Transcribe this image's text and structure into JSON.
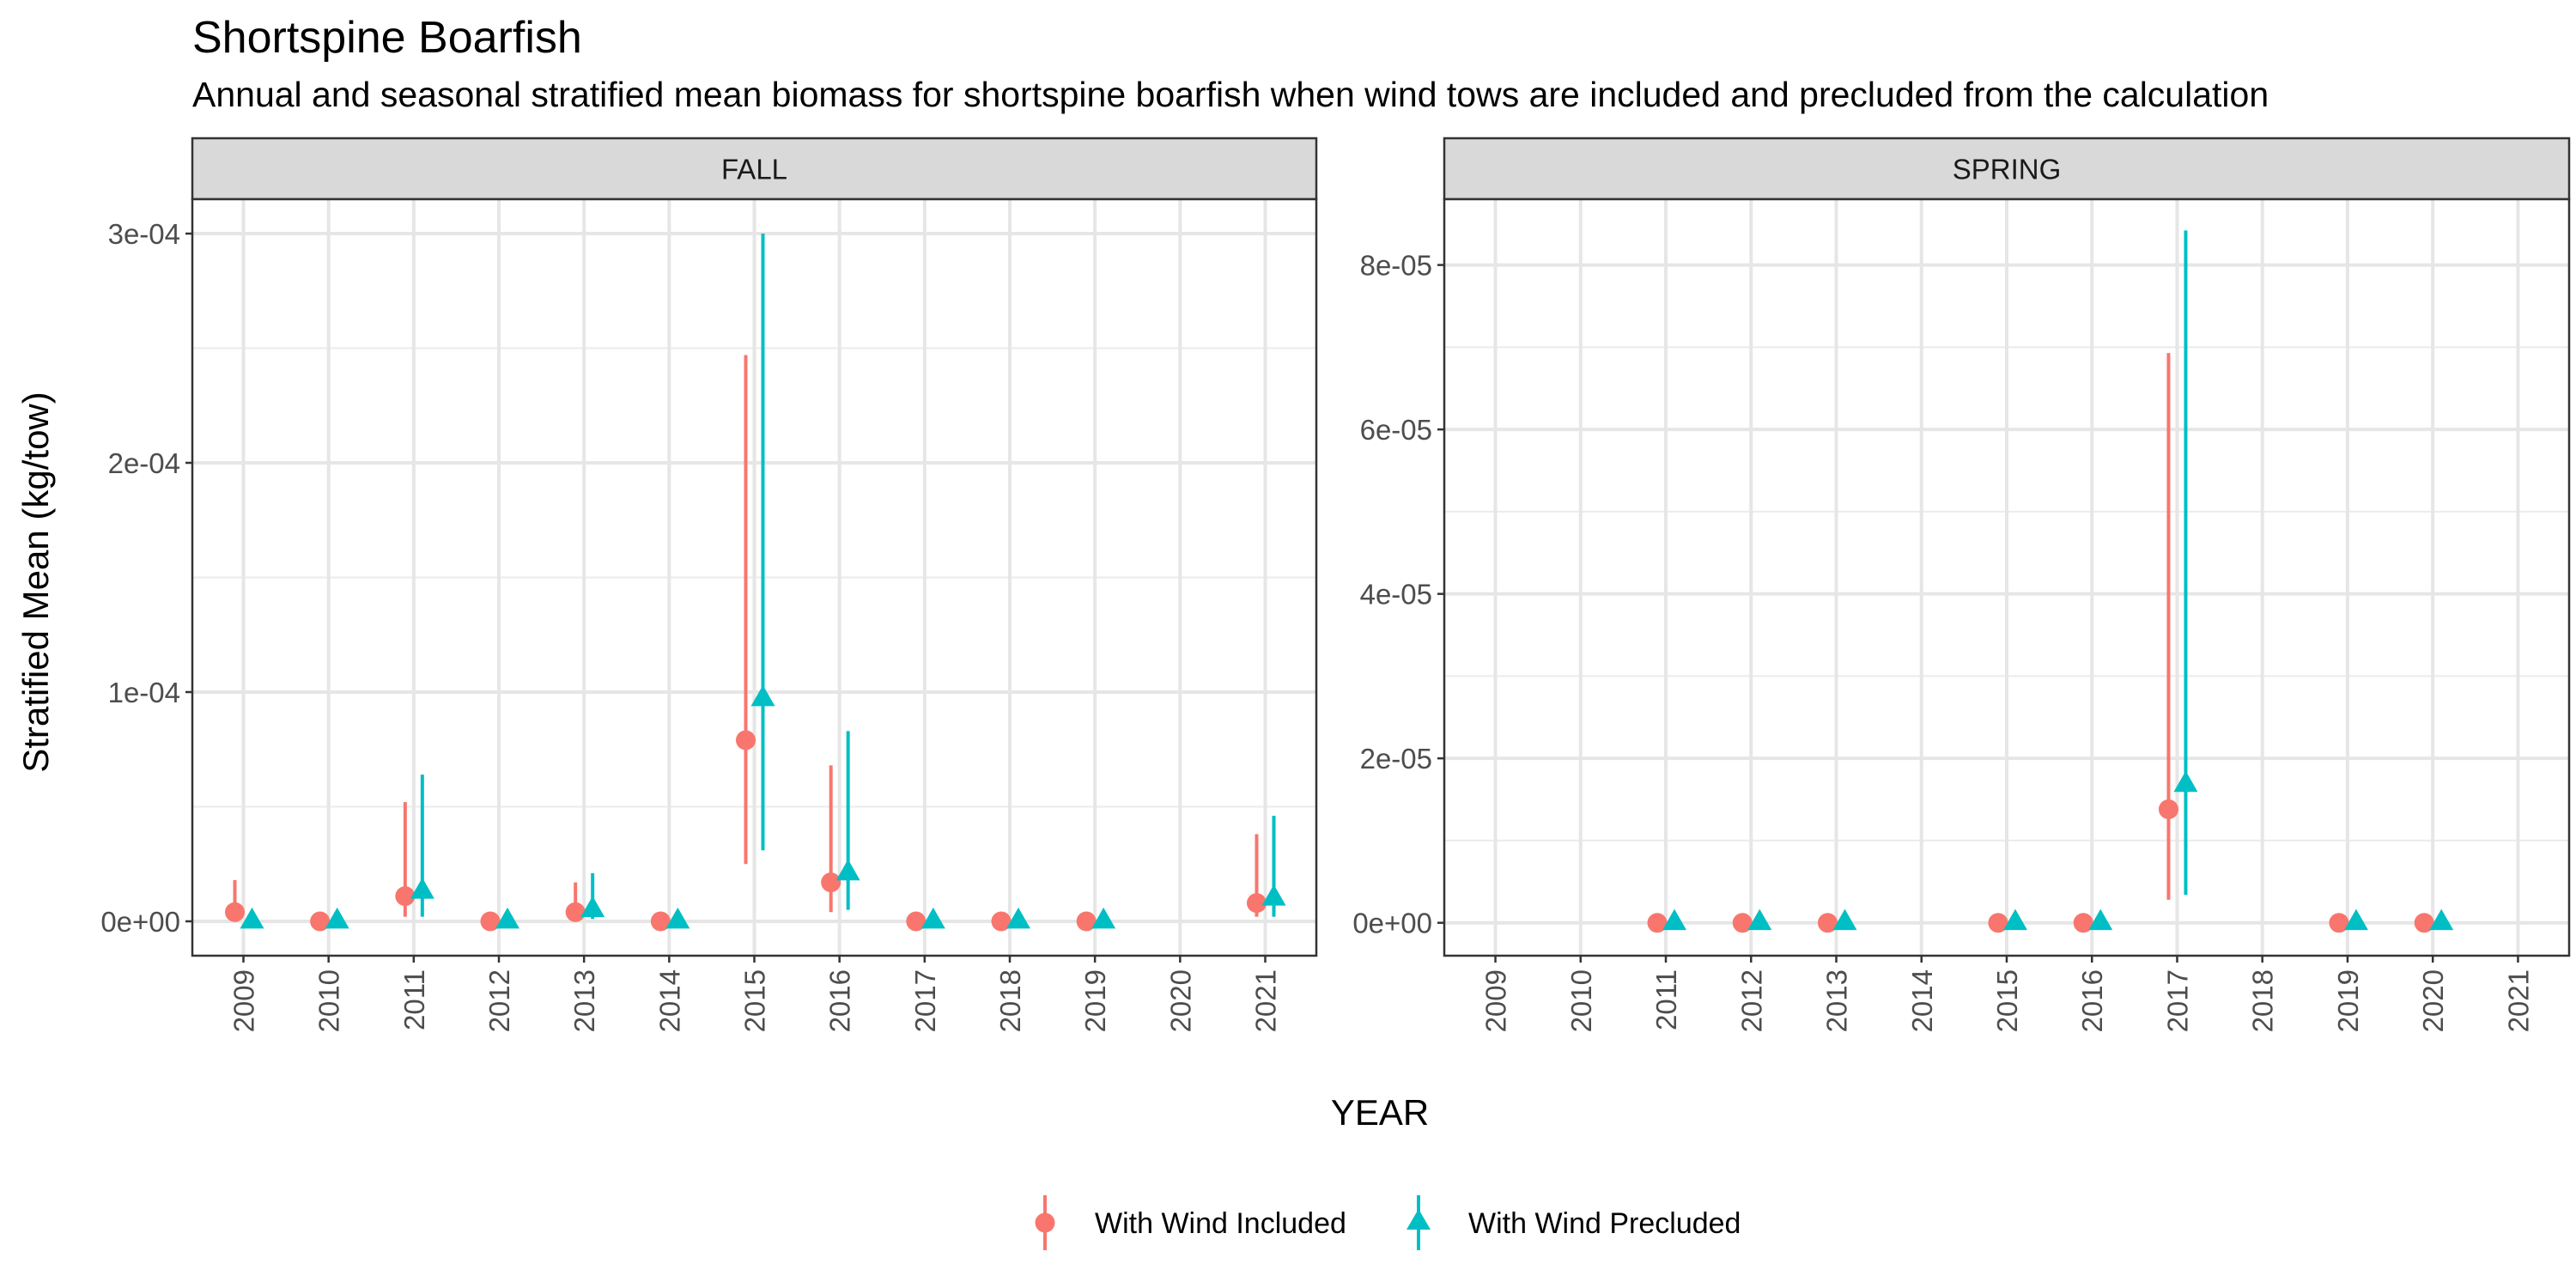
{
  "title": "Shortspine Boarfish",
  "subtitle": "Annual and seasonal stratified mean biomass for shortspine boarfish when wind tows are included and precluded from the calculation",
  "chart_data": {
    "type": "scatter",
    "xlabel": "YEAR",
    "ylabel": "Stratified Mean (kg/tow)",
    "legend_position": "bottom",
    "grid": true,
    "series_styles": [
      {
        "name": "With Wind Included",
        "color": "#F8766D",
        "shape": "circle"
      },
      {
        "name": "With Wind Precluded",
        "color": "#00BFC4",
        "shape": "triangle"
      }
    ],
    "panels": [
      {
        "strip": "FALL",
        "x_ticks": [
          "2009",
          "2010",
          "2011",
          "2012",
          "2013",
          "2014",
          "2015",
          "2016",
          "2017",
          "2018",
          "2019",
          "2020",
          "2021"
        ],
        "y_ticks": [
          0,
          0.0001,
          0.0002,
          0.0003
        ],
        "y_tick_labels": [
          "0e+00",
          "1e-04",
          "2e-04",
          "3e-04"
        ],
        "ylim": [
          -1.5e-05,
          0.000315
        ],
        "series": [
          {
            "name": "With Wind Included",
            "points": [
              {
                "x": 2009,
                "y": 4e-06,
                "lo": 5e-07,
                "hi": 1.8e-05
              },
              {
                "x": 2010,
                "y": 0.0,
                "lo": 0.0,
                "hi": 0.0
              },
              {
                "x": 2011,
                "y": 1.1e-05,
                "lo": 2e-06,
                "hi": 5.2e-05
              },
              {
                "x": 2012,
                "y": 0.0,
                "lo": 0.0,
                "hi": 0.0
              },
              {
                "x": 2013,
                "y": 4e-06,
                "lo": 5e-07,
                "hi": 1.7e-05
              },
              {
                "x": 2014,
                "y": 0.0,
                "lo": 0.0,
                "hi": 0.0
              },
              {
                "x": 2015,
                "y": 7.9e-05,
                "lo": 2.5e-05,
                "hi": 0.000247
              },
              {
                "x": 2016,
                "y": 1.7e-05,
                "lo": 4e-06,
                "hi": 6.8e-05
              },
              {
                "x": 2017,
                "y": 0.0,
                "lo": 0.0,
                "hi": 0.0
              },
              {
                "x": 2018,
                "y": 0.0,
                "lo": 0.0,
                "hi": 0.0
              },
              {
                "x": 2019,
                "y": 0.0,
                "lo": 0.0,
                "hi": 0.0
              },
              {
                "x": 2021,
                "y": 8e-06,
                "lo": 2e-06,
                "hi": 3.8e-05
              }
            ]
          },
          {
            "name": "With Wind Precluded",
            "points": [
              {
                "x": 2009,
                "y": 0.0,
                "lo": 0.0,
                "hi": 0.0
              },
              {
                "x": 2010,
                "y": 0.0,
                "lo": 0.0,
                "hi": 0.0
              },
              {
                "x": 2011,
                "y": 1.3e-05,
                "lo": 2e-06,
                "hi": 6.4e-05
              },
              {
                "x": 2012,
                "y": 0.0,
                "lo": 0.0,
                "hi": 0.0
              },
              {
                "x": 2013,
                "y": 5e-06,
                "lo": 1e-06,
                "hi": 2.1e-05
              },
              {
                "x": 2014,
                "y": 0.0,
                "lo": 0.0,
                "hi": 0.0
              },
              {
                "x": 2015,
                "y": 9.7e-05,
                "lo": 3.1e-05,
                "hi": 0.0003
              },
              {
                "x": 2016,
                "y": 2.1e-05,
                "lo": 5e-06,
                "hi": 8.3e-05
              },
              {
                "x": 2017,
                "y": 0.0,
                "lo": 0.0,
                "hi": 0.0
              },
              {
                "x": 2018,
                "y": 0.0,
                "lo": 0.0,
                "hi": 0.0
              },
              {
                "x": 2019,
                "y": 0.0,
                "lo": 0.0,
                "hi": 0.0
              },
              {
                "x": 2021,
                "y": 1e-05,
                "lo": 2e-06,
                "hi": 4.6e-05
              }
            ]
          }
        ]
      },
      {
        "strip": "SPRING",
        "x_ticks": [
          "2009",
          "2010",
          "2011",
          "2012",
          "2013",
          "2014",
          "2015",
          "2016",
          "2017",
          "2018",
          "2019",
          "2020",
          "2021"
        ],
        "y_ticks": [
          0,
          2e-05,
          4e-05,
          6e-05,
          8e-05
        ],
        "y_tick_labels": [
          "0e+00",
          "2e-05",
          "4e-05",
          "6e-05",
          "8e-05"
        ],
        "ylim": [
          -4e-06,
          8.8e-05
        ],
        "series": [
          {
            "name": "With Wind Included",
            "points": [
              {
                "x": 2011,
                "y": 0.0,
                "lo": 0.0,
                "hi": 0.0
              },
              {
                "x": 2012,
                "y": 0.0,
                "lo": 0.0,
                "hi": 0.0
              },
              {
                "x": 2013,
                "y": 0.0,
                "lo": 0.0,
                "hi": 0.0
              },
              {
                "x": 2015,
                "y": 0.0,
                "lo": 0.0,
                "hi": 0.0
              },
              {
                "x": 2016,
                "y": 0.0,
                "lo": 0.0,
                "hi": 0.0
              },
              {
                "x": 2017,
                "y": 1.38e-05,
                "lo": 2.8e-06,
                "hi": 6.93e-05
              },
              {
                "x": 2019,
                "y": 0.0,
                "lo": 0.0,
                "hi": 0.0
              },
              {
                "x": 2020,
                "y": 0.0,
                "lo": 0.0,
                "hi": 0.0
              }
            ]
          },
          {
            "name": "With Wind Precluded",
            "points": [
              {
                "x": 2011,
                "y": 0.0,
                "lo": 0.0,
                "hi": 0.0
              },
              {
                "x": 2012,
                "y": 0.0,
                "lo": 0.0,
                "hi": 0.0
              },
              {
                "x": 2013,
                "y": 0.0,
                "lo": 0.0,
                "hi": 0.0
              },
              {
                "x": 2015,
                "y": 0.0,
                "lo": 0.0,
                "hi": 0.0
              },
              {
                "x": 2016,
                "y": 0.0,
                "lo": 0.0,
                "hi": 0.0
              },
              {
                "x": 2017,
                "y": 1.68e-05,
                "lo": 3.4e-06,
                "hi": 8.42e-05
              },
              {
                "x": 2019,
                "y": 0.0,
                "lo": 0.0,
                "hi": 0.0
              },
              {
                "x": 2020,
                "y": 0.0,
                "lo": 0.0,
                "hi": 0.0
              }
            ]
          }
        ]
      }
    ]
  }
}
